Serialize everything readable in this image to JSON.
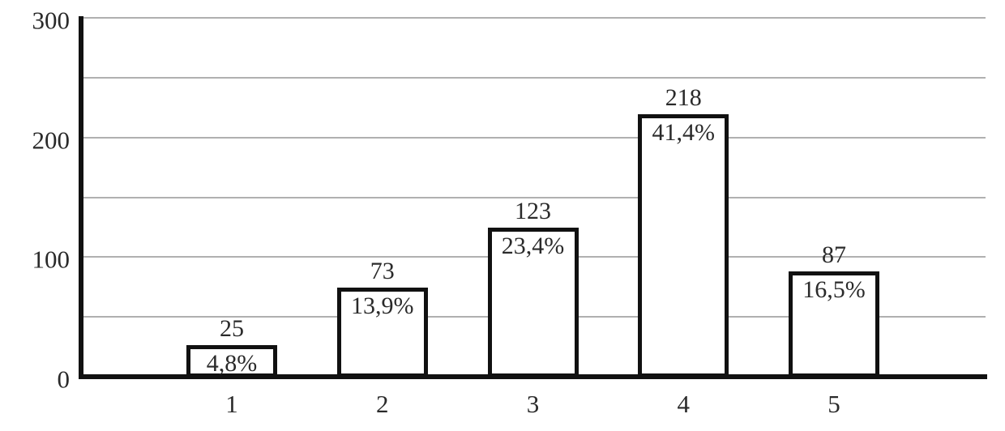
{
  "chart_data": {
    "type": "bar",
    "title": "",
    "xlabel": "",
    "ylabel": "",
    "categories": [
      "1",
      "2",
      "3",
      "4",
      "5"
    ],
    "values": [
      25,
      73,
      123,
      218,
      87
    ],
    "bar_percent_labels": [
      "4,8%",
      "13,9%",
      "23,4%",
      "41,4%",
      "16,5%"
    ],
    "bar_value_labels": [
      "25",
      "73",
      "123",
      "218",
      "87"
    ],
    "ylim": [
      0,
      300
    ],
    "ytick_values": [
      0,
      100,
      200,
      300
    ],
    "ytick_labels": [
      "0",
      "100",
      "200",
      "300"
    ],
    "gridline_step": 50,
    "gridline_values": [
      50,
      100,
      150,
      200,
      250,
      300
    ],
    "grid": true,
    "legend": "none",
    "colors": {
      "background": "#ffffff",
      "bar_fill": "#ffffff",
      "bar_border": "#111111",
      "axis": "#111111",
      "gridline": "#b0b0b0",
      "text": "#2a2a2a"
    }
  }
}
